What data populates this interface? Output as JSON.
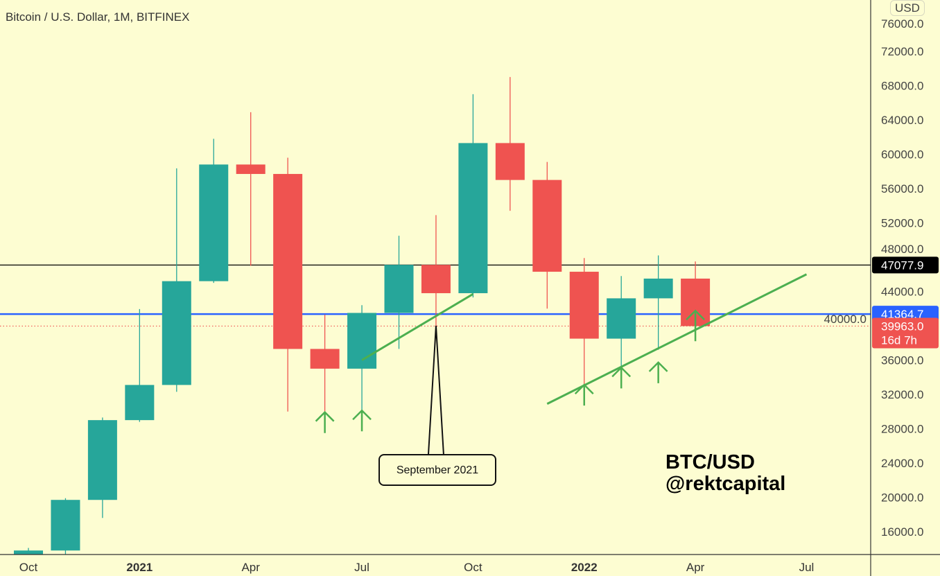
{
  "header": {
    "title": "Bitcoin / U.S. Dollar, 1M, BITFINEX",
    "currency_button": "USD"
  },
  "watermark": {
    "line1": "BTC/USD",
    "line2": "@rektcapital"
  },
  "annotation": {
    "label": "September 2021",
    "points_to": "2021-09"
  },
  "colors": {
    "background": "#fdfdd2",
    "up": "#26a69a",
    "down": "#ef5350",
    "trendline": "#4caf50",
    "level_black": "#000000",
    "level_blue": "#2962ff"
  },
  "chart_data": {
    "type": "candlestick",
    "title": "Bitcoin / U.S. Dollar, 1M, BITFINEX",
    "ylim": [
      13500,
      78000
    ],
    "y_ticks": [
      76000,
      72000,
      68000,
      64000,
      60000,
      56000,
      52000,
      48000,
      44000,
      40000,
      36000,
      32000,
      28000,
      24000,
      20000,
      16000
    ],
    "y_tick_labels": [
      "76000.0",
      "72000.0",
      "68000.0",
      "64000.0",
      "60000.0",
      "56000.0",
      "52000.0",
      "48000.0",
      "44000.0",
      "40000.0",
      "36000.0",
      "32000.0",
      "28000.0",
      "24000.0",
      "20000.0",
      "16000.0"
    ],
    "x_ticks": [
      {
        "label": "Oct",
        "month": 0,
        "bold": false
      },
      {
        "label": "2021",
        "month": 3,
        "bold": true
      },
      {
        "label": "Apr",
        "month": 6,
        "bold": false
      },
      {
        "label": "Jul",
        "month": 9,
        "bold": false
      },
      {
        "label": "Oct",
        "month": 12,
        "bold": false
      },
      {
        "label": "2022",
        "month": 15,
        "bold": true
      },
      {
        "label": "Apr",
        "month": 18,
        "bold": false
      },
      {
        "label": "Jul",
        "month": 21,
        "bold": false
      }
    ],
    "candles": [
      {
        "date": "2020-10",
        "o": 10780,
        "h": 14100,
        "l": 10380,
        "c": 13800
      },
      {
        "date": "2020-11",
        "o": 13800,
        "h": 19900,
        "l": 13200,
        "c": 19700
      },
      {
        "date": "2020-12",
        "o": 19700,
        "h": 29300,
        "l": 17600,
        "c": 29000
      },
      {
        "date": "2021-01",
        "o": 29000,
        "h": 41950,
        "l": 28800,
        "c": 33100
      },
      {
        "date": "2021-02",
        "o": 33100,
        "h": 58350,
        "l": 32300,
        "c": 45200
      },
      {
        "date": "2021-03",
        "o": 45200,
        "h": 61800,
        "l": 45000,
        "c": 58800
      },
      {
        "date": "2021-04",
        "o": 58800,
        "h": 64900,
        "l": 47000,
        "c": 57700
      },
      {
        "date": "2021-05",
        "o": 57700,
        "h": 59600,
        "l": 30000,
        "c": 37300
      },
      {
        "date": "2021-06",
        "o": 37300,
        "h": 41300,
        "l": 28800,
        "c": 35000
      },
      {
        "date": "2021-07",
        "o": 35000,
        "h": 42400,
        "l": 29300,
        "c": 41500
      },
      {
        "date": "2021-08",
        "o": 41500,
        "h": 50500,
        "l": 37300,
        "c": 47100
      },
      {
        "date": "2021-09",
        "o": 47100,
        "h": 52900,
        "l": 39600,
        "c": 43800
      },
      {
        "date": "2021-10",
        "o": 43800,
        "h": 67000,
        "l": 43300,
        "c": 61300
      },
      {
        "date": "2021-11",
        "o": 61300,
        "h": 69000,
        "l": 53400,
        "c": 57000
      },
      {
        "date": "2021-12",
        "o": 57000,
        "h": 59100,
        "l": 42000,
        "c": 46300
      },
      {
        "date": "2022-01",
        "o": 46300,
        "h": 47900,
        "l": 32900,
        "c": 38500
      },
      {
        "date": "2022-02",
        "o": 38500,
        "h": 45800,
        "l": 34300,
        "c": 43200
      },
      {
        "date": "2022-03",
        "o": 43200,
        "h": 48200,
        "l": 37200,
        "c": 45500
      },
      {
        "date": "2022-04",
        "o": 45500,
        "h": 47500,
        "l": 39500,
        "c": 39963
      }
    ],
    "levels": [
      {
        "price": 47077.9,
        "label": "47077.9",
        "color": "#000000",
        "style": "solid"
      },
      {
        "price": 41364.7,
        "label": "41364.7",
        "color": "#2962ff",
        "style": "solid"
      },
      {
        "price": 39963.0,
        "label": "39963.0",
        "sub_label": "16d 7h",
        "color": "#ef5350",
        "style": "dotted"
      }
    ],
    "trendlines": [
      {
        "from": {
          "month": 9,
          "price": 36000
        },
        "to": {
          "month": 12,
          "price": 43700
        }
      },
      {
        "from": {
          "month": 14,
          "price": 30900
        },
        "to": {
          "month": 21,
          "price": 46000
        }
      }
    ],
    "up_arrows": [
      {
        "month": 8,
        "price": 27500
      },
      {
        "month": 9,
        "price": 27700
      },
      {
        "month": 15,
        "price": 30700
      },
      {
        "month": 16,
        "price": 32700
      },
      {
        "month": 17,
        "price": 33300
      },
      {
        "month": 18,
        "price": 38200
      }
    ]
  }
}
